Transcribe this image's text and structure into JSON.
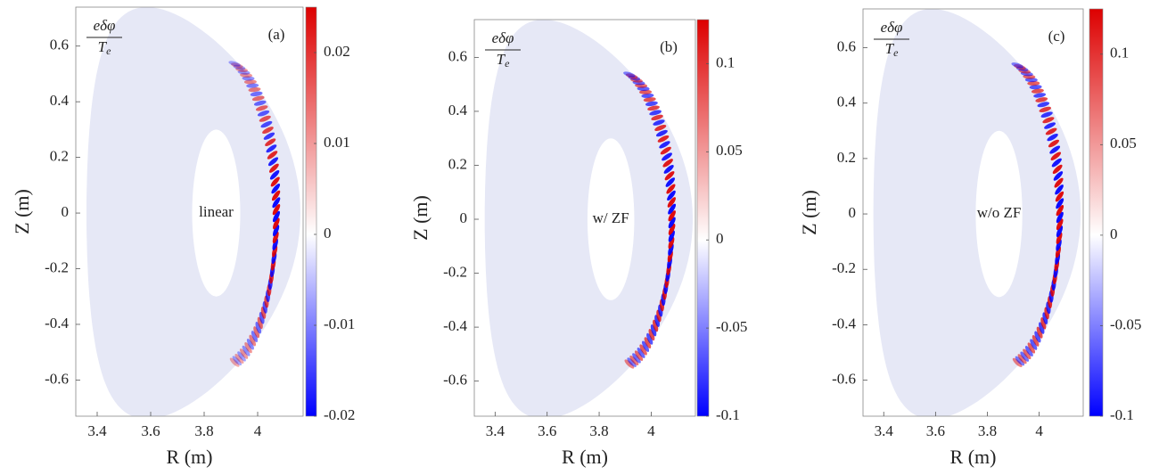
{
  "chart_data": [
    {
      "type": "contour",
      "annotation": "(a)",
      "center_label": "linear",
      "xlabel": "R (m)",
      "ylabel": "Z (m)",
      "cbar_label": {
        "numerator": "eδφ",
        "denominator": "T",
        "denominator_sub": "e"
      },
      "xlim": [
        3.32,
        4.17
      ],
      "ylim": [
        -0.73,
        0.74
      ],
      "xticks": [
        3.4,
        3.6,
        3.8,
        4
      ],
      "yticks": [
        -0.6,
        -0.4,
        -0.2,
        0,
        0.2,
        0.4,
        0.6
      ],
      "clim": [
        -0.02,
        0.025
      ],
      "cticks": [
        -0.02,
        -0.01,
        0,
        0.01,
        0.02
      ],
      "colormap": [
        "#0000ff",
        "#ffffff",
        "#dd0000"
      ],
      "background": "#e6e8f6"
    },
    {
      "type": "contour",
      "annotation": "(b)",
      "center_label": "w/ ZF",
      "xlabel": "R (m)",
      "ylabel": "Z (m)",
      "cbar_label": {
        "numerator": "eδφ",
        "denominator": "T",
        "denominator_sub": "e"
      },
      "xlim": [
        3.32,
        4.17
      ],
      "ylim": [
        -0.73,
        0.74
      ],
      "xticks": [
        3.4,
        3.6,
        3.8,
        4
      ],
      "yticks": [
        -0.6,
        -0.4,
        -0.2,
        0,
        0.2,
        0.4,
        0.6
      ],
      "clim": [
        -0.1,
        0.125
      ],
      "cticks": [
        -0.1,
        -0.05,
        0,
        0.05,
        0.1
      ],
      "colormap": [
        "#0000ff",
        "#ffffff",
        "#dd0000"
      ],
      "background": "#e6e8f6"
    },
    {
      "type": "contour",
      "annotation": "(c)",
      "center_label": "w/o ZF",
      "xlabel": "R (m)",
      "ylabel": "Z (m)",
      "cbar_label": {
        "numerator": "eδφ",
        "denominator": "T",
        "denominator_sub": "e"
      },
      "xlim": [
        3.32,
        4.17
      ],
      "ylim": [
        -0.73,
        0.74
      ],
      "xticks": [
        3.4,
        3.6,
        3.8,
        4
      ],
      "yticks": [
        -0.6,
        -0.4,
        -0.2,
        0,
        0.2,
        0.4,
        0.6
      ],
      "clim": [
        -0.1,
        0.125
      ],
      "cticks": [
        -0.1,
        -0.05,
        0,
        0.05,
        0.1
      ],
      "colormap": [
        "#0000ff",
        "#ffffff",
        "#dd0000"
      ],
      "background": "#e6e8f6"
    }
  ]
}
